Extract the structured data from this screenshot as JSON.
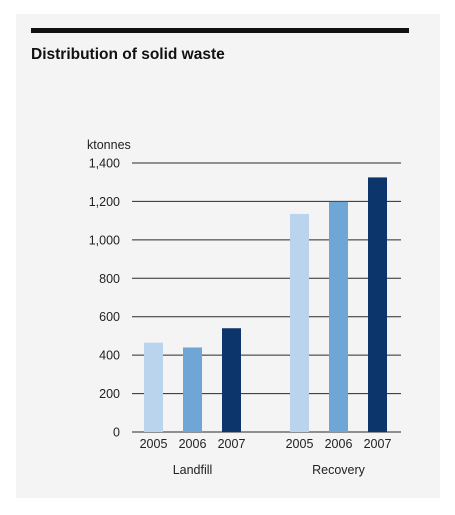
{
  "chart_data": {
    "type": "bar",
    "title": "Distribution of solid waste",
    "ylabel": "ktonnes",
    "xlabel": "",
    "ylim": [
      0,
      1400
    ],
    "yticks": [
      0,
      200,
      400,
      600,
      800,
      1000,
      1200,
      1400
    ],
    "ytick_labels": [
      "0",
      "200",
      "400",
      "600",
      "800",
      "1,000",
      "1,200",
      "1,400"
    ],
    "grid": true,
    "legend": "none",
    "groups": [
      {
        "name": "Landfill",
        "bars": [
          {
            "year": "2005",
            "value": 465,
            "color": "#b9d4ec"
          },
          {
            "year": "2006",
            "value": 440,
            "color": "#6fa6d6"
          },
          {
            "year": "2007",
            "value": 540,
            "color": "#0c366b"
          }
        ]
      },
      {
        "name": "Recovery",
        "bars": [
          {
            "year": "2005",
            "value": 1135,
            "color": "#b9d4ec"
          },
          {
            "year": "2006",
            "value": 1198,
            "color": "#6fa6d6"
          },
          {
            "year": "2007",
            "value": 1325,
            "color": "#0c366b"
          }
        ]
      }
    ]
  }
}
